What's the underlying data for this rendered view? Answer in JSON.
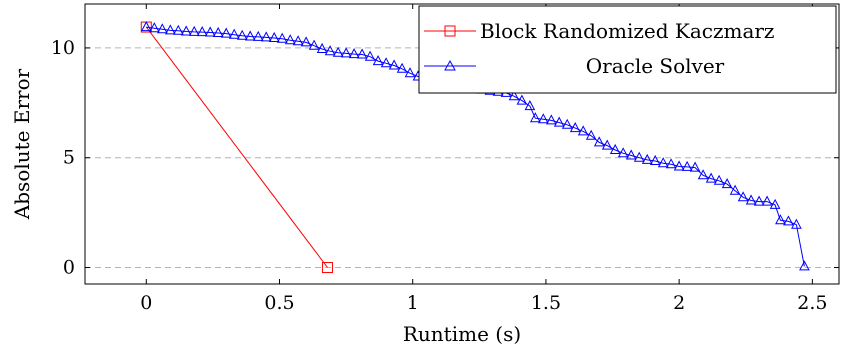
{
  "chart_data": {
    "type": "line",
    "title": "",
    "xlabel": "Runtime (s)",
    "ylabel": "Absolute Error",
    "xlim": [
      -0.23,
      2.6
    ],
    "ylim": [
      -0.75,
      12
    ],
    "xticks": [
      0,
      0.5,
      1,
      1.5,
      2,
      2.5
    ],
    "xtick_labels": [
      "0",
      "0.5",
      "1",
      "1.5",
      "2",
      "2.5"
    ],
    "yticks": [
      0,
      5,
      10
    ],
    "ytick_labels": [
      "0",
      "5",
      "10"
    ],
    "grid": "horizontal dashed (y major)",
    "legend_position": "top-right",
    "series": [
      {
        "name": "Block Randomized Kaczmarz",
        "color": "#ff0000",
        "marker": "square",
        "x": [
          0,
          0.68
        ],
        "y": [
          10.95,
          0
        ]
      },
      {
        "name": "Oracle Solver",
        "color": "#0000ff",
        "marker": "triangle",
        "x": [
          0.0,
          0.03,
          0.06,
          0.09,
          0.12,
          0.15,
          0.18,
          0.21,
          0.24,
          0.27,
          0.3,
          0.33,
          0.36,
          0.39,
          0.42,
          0.45,
          0.48,
          0.51,
          0.54,
          0.57,
          0.6,
          0.63,
          0.66,
          0.69,
          0.72,
          0.75,
          0.78,
          0.81,
          0.84,
          0.87,
          0.9,
          0.93,
          0.96,
          0.99,
          1.02,
          1.05,
          1.08,
          1.11,
          1.14,
          1.17,
          1.2,
          1.23,
          1.26,
          1.29,
          1.32,
          1.35,
          1.38,
          1.41,
          1.44,
          1.46,
          1.49,
          1.52,
          1.55,
          1.58,
          1.61,
          1.64,
          1.67,
          1.7,
          1.73,
          1.76,
          1.79,
          1.82,
          1.85,
          1.88,
          1.91,
          1.94,
          1.97,
          2.0,
          2.03,
          2.06,
          2.09,
          2.12,
          2.15,
          2.18,
          2.21,
          2.24,
          2.27,
          2.3,
          2.33,
          2.36,
          2.38,
          2.41,
          2.44,
          2.47
        ],
        "y": [
          10.95,
          10.9,
          10.85,
          10.8,
          10.78,
          10.75,
          10.73,
          10.72,
          10.7,
          10.68,
          10.65,
          10.6,
          10.55,
          10.52,
          10.5,
          10.48,
          10.45,
          10.42,
          10.35,
          10.3,
          10.25,
          10.1,
          9.95,
          9.85,
          9.78,
          9.75,
          9.72,
          9.7,
          9.6,
          9.4,
          9.3,
          9.2,
          9.05,
          8.85,
          8.7,
          8.6,
          8.55,
          8.4,
          8.25,
          8.2,
          8.15,
          8.12,
          8.1,
          8.05,
          8.0,
          7.95,
          7.8,
          7.6,
          7.35,
          6.8,
          6.75,
          6.7,
          6.6,
          6.5,
          6.35,
          6.2,
          6.0,
          5.7,
          5.55,
          5.35,
          5.2,
          5.1,
          5.0,
          4.9,
          4.85,
          4.75,
          4.7,
          4.6,
          4.58,
          4.55,
          4.2,
          4.05,
          3.95,
          3.8,
          3.5,
          3.2,
          3.05,
          3.0,
          3.0,
          2.85,
          2.15,
          2.1,
          1.95,
          0.05
        ]
      }
    ]
  }
}
